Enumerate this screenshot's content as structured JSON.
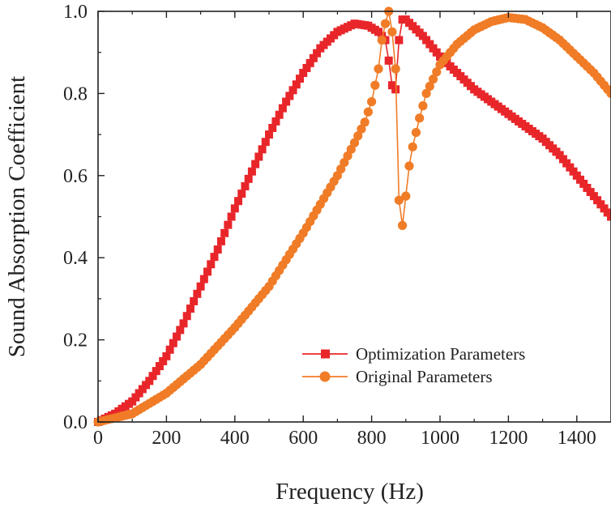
{
  "chart_data": {
    "type": "line",
    "xlabel": "Frequency (Hz)",
    "ylabel": "Sound Absorption Coefficient",
    "xlim": [
      0,
      1500
    ],
    "ylim": [
      0,
      1.0
    ],
    "xticks": [
      0,
      200,
      400,
      600,
      800,
      1000,
      1200,
      1400
    ],
    "xtick_labels": [
      "0",
      "200",
      "400",
      "600",
      "800",
      "1000",
      "1200",
      "1400"
    ],
    "yticks": [
      0.0,
      0.2,
      0.4,
      0.6,
      0.8,
      1.0
    ],
    "ytick_labels": [
      "0.0",
      "0.2",
      "0.4",
      "0.6",
      "0.8",
      "1.0"
    ],
    "grid": false,
    "legend_position": "lower-right",
    "x_step": 10,
    "series": [
      {
        "name": "Optimization Parameters",
        "color": "#e8262a",
        "marker": "square",
        "points": [
          [
            0,
            0.0
          ],
          [
            50,
            0.02
          ],
          [
            100,
            0.05
          ],
          [
            150,
            0.1
          ],
          [
            200,
            0.16
          ],
          [
            250,
            0.24
          ],
          [
            300,
            0.33
          ],
          [
            350,
            0.42
          ],
          [
            400,
            0.52
          ],
          [
            450,
            0.61
          ],
          [
            500,
            0.7
          ],
          [
            550,
            0.78
          ],
          [
            600,
            0.85
          ],
          [
            650,
            0.91
          ],
          [
            700,
            0.95
          ],
          [
            750,
            0.97
          ],
          [
            790,
            0.965
          ],
          [
            820,
            0.95
          ],
          [
            840,
            0.93
          ],
          [
            850,
            0.88
          ],
          [
            860,
            0.82
          ],
          [
            870,
            0.81
          ],
          [
            880,
            0.93
          ],
          [
            890,
            0.98
          ],
          [
            900,
            0.98
          ],
          [
            950,
            0.94
          ],
          [
            1000,
            0.89
          ],
          [
            1050,
            0.85
          ],
          [
            1100,
            0.81
          ],
          [
            1150,
            0.78
          ],
          [
            1200,
            0.75
          ],
          [
            1250,
            0.72
          ],
          [
            1300,
            0.69
          ],
          [
            1350,
            0.65
          ],
          [
            1400,
            0.6
          ],
          [
            1450,
            0.55
          ],
          [
            1500,
            0.5
          ]
        ]
      },
      {
        "name": "Original Parameters",
        "color": "#f07c27",
        "marker": "circle",
        "points": [
          [
            0,
            0.0
          ],
          [
            100,
            0.02
          ],
          [
            200,
            0.07
          ],
          [
            300,
            0.14
          ],
          [
            400,
            0.23
          ],
          [
            500,
            0.33
          ],
          [
            600,
            0.46
          ],
          [
            650,
            0.53
          ],
          [
            700,
            0.6
          ],
          [
            750,
            0.68
          ],
          [
            780,
            0.73
          ],
          [
            800,
            0.78
          ],
          [
            820,
            0.86
          ],
          [
            830,
            0.93
          ],
          [
            840,
            0.97
          ],
          [
            850,
            1.0
          ],
          [
            860,
            0.95
          ],
          [
            870,
            0.86
          ],
          [
            875,
            0.76
          ],
          [
            880,
            0.54
          ],
          [
            888,
            0.47
          ],
          [
            895,
            0.5
          ],
          [
            905,
            0.6
          ],
          [
            920,
            0.67
          ],
          [
            940,
            0.74
          ],
          [
            960,
            0.8
          ],
          [
            1000,
            0.87
          ],
          [
            1050,
            0.92
          ],
          [
            1100,
            0.955
          ],
          [
            1150,
            0.975
          ],
          [
            1200,
            0.985
          ],
          [
            1250,
            0.98
          ],
          [
            1300,
            0.96
          ],
          [
            1350,
            0.93
          ],
          [
            1400,
            0.89
          ],
          [
            1450,
            0.85
          ],
          [
            1500,
            0.8
          ]
        ]
      }
    ]
  }
}
